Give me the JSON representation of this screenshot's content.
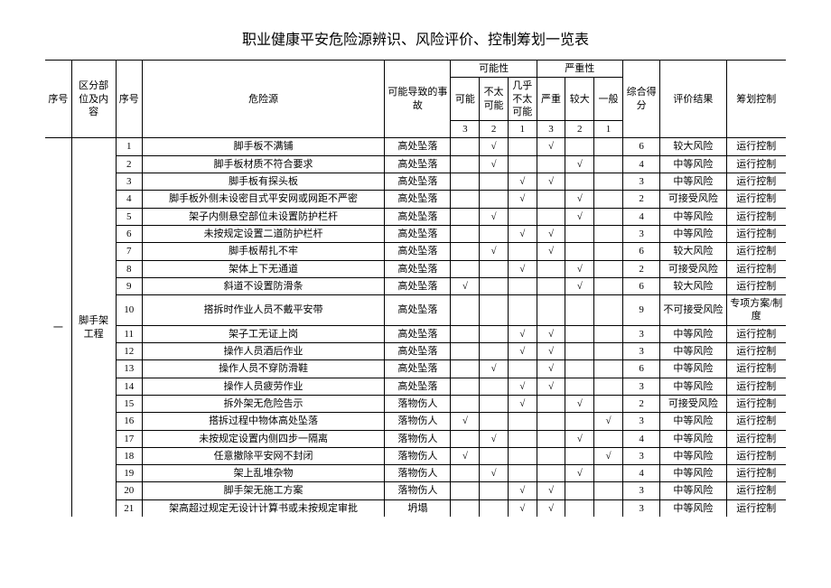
{
  "title": "职业健康平安危险源辨识、风险评价、控制筹划一览表",
  "headers": {
    "seq": "序号",
    "section": "区分部位及内容",
    "subseq": "序号",
    "hazard": "危险源",
    "accident": "可能导致的事故",
    "possibility": "可能性",
    "severity": "严重性",
    "p3": "可能",
    "p2": "不太可能",
    "p1": "几乎不太可能",
    "s3": "严重",
    "s2": "较大",
    "s1": "一般",
    "n3": "3",
    "n2": "2",
    "n1": "1",
    "score": "综合得分",
    "result": "评价结果",
    "control": "筹划控制"
  },
  "main_seq": "一",
  "section_name": "脚手架工程",
  "rows": [
    {
      "n": "1",
      "hazard": "脚手板不满铺",
      "acc": "高处坠落",
      "p3": "",
      "p2": "√",
      "p1": "",
      "s3": "√",
      "s2": "",
      "s1": "",
      "score": "6",
      "result": "较大风险",
      "ctrl": "运行控制"
    },
    {
      "n": "2",
      "hazard": "脚手板材质不符合要求",
      "acc": "高处坠落",
      "p3": "",
      "p2": "√",
      "p1": "",
      "s3": "",
      "s2": "√",
      "s1": "",
      "score": "4",
      "result": "中等风险",
      "ctrl": "运行控制"
    },
    {
      "n": "3",
      "hazard": "脚手板有探头板",
      "acc": "高处坠落",
      "p3": "",
      "p2": "",
      "p1": "√",
      "s3": "√",
      "s2": "",
      "s1": "",
      "score": "3",
      "result": "中等风险",
      "ctrl": "运行控制"
    },
    {
      "n": "4",
      "hazard": "脚手板外侧未设密目式平安网或网距不严密",
      "acc": "高处坠落",
      "p3": "",
      "p2": "",
      "p1": "√",
      "s3": "",
      "s2": "√",
      "s1": "",
      "score": "2",
      "result": "可接受风险",
      "ctrl": "运行控制"
    },
    {
      "n": "5",
      "hazard": "架子内侧悬空部位未设置防护栏杆",
      "acc": "高处坠落",
      "p3": "",
      "p2": "√",
      "p1": "",
      "s3": "",
      "s2": "√",
      "s1": "",
      "score": "4",
      "result": "中等风险",
      "ctrl": "运行控制"
    },
    {
      "n": "6",
      "hazard": "未按规定设置二道防护栏杆",
      "acc": "高处坠落",
      "p3": "",
      "p2": "",
      "p1": "√",
      "s3": "√",
      "s2": "",
      "s1": "",
      "score": "3",
      "result": "中等风险",
      "ctrl": "运行控制"
    },
    {
      "n": "7",
      "hazard": "脚手板帮扎不牢",
      "acc": "高处坠落",
      "p3": "",
      "p2": "√",
      "p1": "",
      "s3": "√",
      "s2": "",
      "s1": "",
      "score": "6",
      "result": "较大风险",
      "ctrl": "运行控制"
    },
    {
      "n": "8",
      "hazard": "架体上下无通道",
      "acc": "高处坠落",
      "p3": "",
      "p2": "",
      "p1": "√",
      "s3": "",
      "s2": "√",
      "s1": "",
      "score": "2",
      "result": "可接受风险",
      "ctrl": "运行控制"
    },
    {
      "n": "9",
      "hazard": "斜道不设置防滑条",
      "acc": "高处坠落",
      "p3": "√",
      "p2": "",
      "p1": "",
      "s3": "",
      "s2": "√",
      "s1": "",
      "score": "6",
      "result": "较大风险",
      "ctrl": "运行控制"
    },
    {
      "n": "10",
      "hazard": "搭拆时作业人员不戴平安带",
      "acc": "高处坠落",
      "p3": "",
      "p2": "",
      "p1": "",
      "s3": "",
      "s2": "",
      "s1": "",
      "score": "9",
      "result": "不可接受风险",
      "ctrl": "专项方案/制度"
    },
    {
      "n": "11",
      "hazard": "架子工无证上岗",
      "acc": "高处坠落",
      "p3": "",
      "p2": "",
      "p1": "√",
      "s3": "√",
      "s2": "",
      "s1": "",
      "score": "3",
      "result": "中等风险",
      "ctrl": "运行控制"
    },
    {
      "n": "12",
      "hazard": "操作人员酒后作业",
      "acc": "高处坠落",
      "p3": "",
      "p2": "",
      "p1": "√",
      "s3": "√",
      "s2": "",
      "s1": "",
      "score": "3",
      "result": "中等风险",
      "ctrl": "运行控制"
    },
    {
      "n": "13",
      "hazard": "操作人员不穿防滑鞋",
      "acc": "高处坠落",
      "p3": "",
      "p2": "√",
      "p1": "",
      "s3": "√",
      "s2": "",
      "s1": "",
      "score": "6",
      "result": "中等风险",
      "ctrl": "运行控制"
    },
    {
      "n": "14",
      "hazard": "操作人员疲劳作业",
      "acc": "高处坠落",
      "p3": "",
      "p2": "",
      "p1": "√",
      "s3": "√",
      "s2": "",
      "s1": "",
      "score": "3",
      "result": "中等风险",
      "ctrl": "运行控制"
    },
    {
      "n": "15",
      "hazard": "拆外架无危险告示",
      "acc": "落物伤人",
      "p3": "",
      "p2": "",
      "p1": "√",
      "s3": "",
      "s2": "√",
      "s1": "",
      "score": "2",
      "result": "可接受风险",
      "ctrl": "运行控制"
    },
    {
      "n": "16",
      "hazard": "搭拆过程中物体高处坠落",
      "acc": "落物伤人",
      "p3": "√",
      "p2": "",
      "p1": "",
      "s3": "",
      "s2": "",
      "s1": "√",
      "score": "3",
      "result": "中等风险",
      "ctrl": "运行控制"
    },
    {
      "n": "17",
      "hazard": "未按规定设置内侧四步一隔离",
      "acc": "落物伤人",
      "p3": "",
      "p2": "√",
      "p1": "",
      "s3": "",
      "s2": "√",
      "s1": "",
      "score": "4",
      "result": "中等风险",
      "ctrl": "运行控制"
    },
    {
      "n": "18",
      "hazard": "任意撤除平安网不封闭",
      "acc": "落物伤人",
      "p3": "√",
      "p2": "",
      "p1": "",
      "s3": "",
      "s2": "",
      "s1": "√",
      "score": "3",
      "result": "中等风险",
      "ctrl": "运行控制"
    },
    {
      "n": "19",
      "hazard": "架上乱堆杂物",
      "acc": "落物伤人",
      "p3": "",
      "p2": "√",
      "p1": "",
      "s3": "",
      "s2": "√",
      "s1": "",
      "score": "4",
      "result": "中等风险",
      "ctrl": "运行控制"
    },
    {
      "n": "20",
      "hazard": "脚手架无施工方案",
      "acc": "落物伤人",
      "p3": "",
      "p2": "",
      "p1": "√",
      "s3": "√",
      "s2": "",
      "s1": "",
      "score": "3",
      "result": "中等风险",
      "ctrl": "运行控制"
    },
    {
      "n": "21",
      "hazard": "架高超过规定无设计计算书或未按规定审批",
      "acc": "坍塌",
      "p3": "",
      "p2": "",
      "p1": "√",
      "s3": "√",
      "s2": "",
      "s1": "",
      "score": "3",
      "result": "中等风险",
      "ctrl": "运行控制"
    }
  ]
}
